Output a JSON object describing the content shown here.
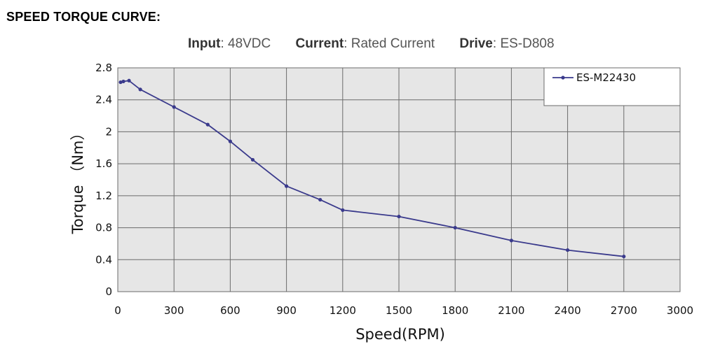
{
  "heading": "SPEED TORQUE CURVE:",
  "subtitle": {
    "input_key": "Input",
    "input_val": "48VDC",
    "current_key": "Current",
    "current_val": "Rated Current",
    "drive_key": "Drive",
    "drive_val": "ES-D808"
  },
  "colors": {
    "line": "#3a3a8c",
    "grid": "#6b6b6b",
    "plot_bg": "#e6e6e6"
  },
  "chart_data": {
    "type": "line",
    "title": "SPEED TORQUE CURVE:",
    "xlabel": "Speed(RPM)",
    "ylabel": "Torque （Nm）",
    "xlim": [
      0,
      3000
    ],
    "ylim": [
      0,
      2.8
    ],
    "xticks": [
      "0",
      "300",
      "600",
      "900",
      "1200",
      "1500",
      "1800",
      "2100",
      "2400",
      "2700",
      "3000"
    ],
    "yticks": [
      "0",
      "0.4",
      "0.8",
      "1.2",
      "1.6",
      "2",
      "2.4",
      "2.8"
    ],
    "grid": true,
    "legend_position": "top-right",
    "series": [
      {
        "name": "ES-M22430",
        "x": [
          15,
          30,
          60,
          120,
          300,
          480,
          600,
          720,
          900,
          1080,
          1200,
          1500,
          1800,
          2100,
          2400,
          2700
        ],
        "y": [
          2.62,
          2.63,
          2.64,
          2.53,
          2.31,
          2.09,
          1.88,
          1.65,
          1.32,
          1.15,
          1.02,
          0.94,
          0.8,
          0.64,
          0.52,
          0.44
        ]
      }
    ]
  }
}
